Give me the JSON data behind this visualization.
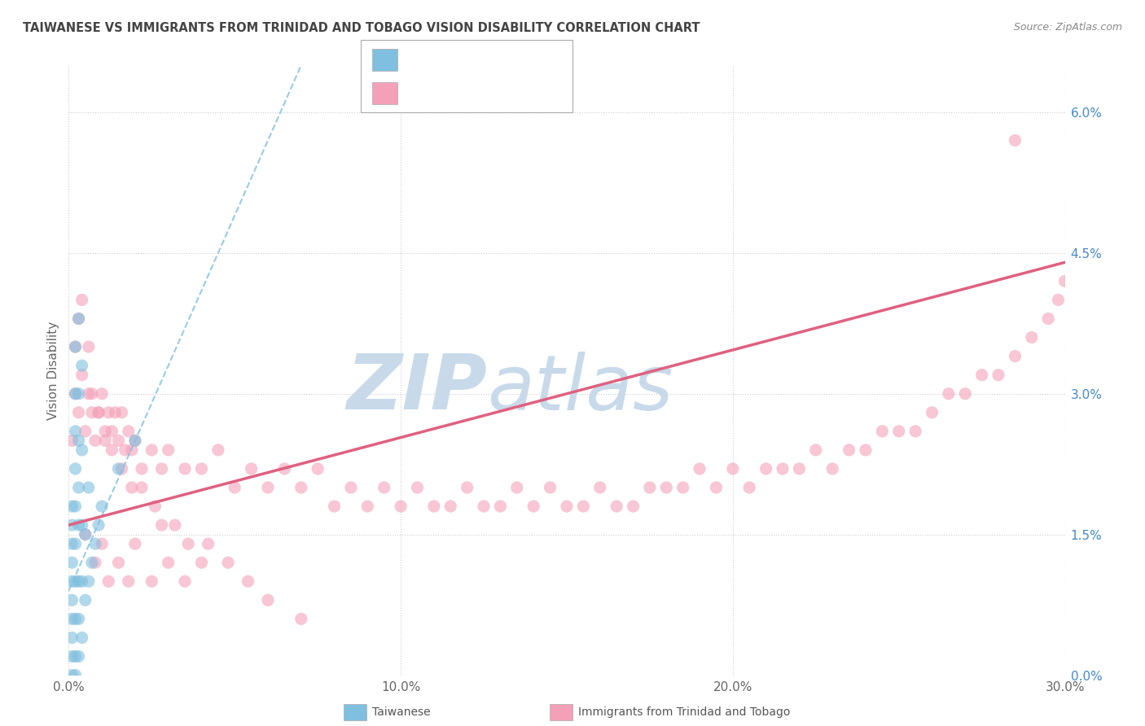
{
  "title": "TAIWANESE VS IMMIGRANTS FROM TRINIDAD AND TOBAGO VISION DISABILITY CORRELATION CHART",
  "source": "Source: ZipAtlas.com",
  "ylabel": "Vision Disability",
  "xlim": [
    0.0,
    0.3
  ],
  "ylim": [
    0.0,
    0.065
  ],
  "xticks": [
    0.0,
    0.1,
    0.2,
    0.3
  ],
  "xticklabels": [
    "0.0%",
    "10.0%",
    "20.0%",
    "30.0%"
  ],
  "yticks_right": [
    0.0,
    0.015,
    0.03,
    0.045,
    0.06
  ],
  "yticklabels_right": [
    "0.0%",
    "1.5%",
    "3.0%",
    "4.5%",
    "6.0%"
  ],
  "legend_labels_bottom": [
    "Taiwanese",
    "Immigrants from Trinidad and Tobago"
  ],
  "blue_color": "#7fbfdf",
  "pink_color": "#f4a0b8",
  "blue_line_color": "#7fbfdf",
  "pink_line_color": "#e06080",
  "watermark_zip": "ZIP",
  "watermark_atlas": "atlas",
  "watermark_color": "#c8daea",
  "title_color": "#444444",
  "source_color": "#888888",
  "legend_text_color": "#4488cc",
  "background_color": "#ffffff",
  "grid_color": "#cccccc",
  "blue_tw_x": [
    0.001,
    0.001,
    0.001,
    0.001,
    0.001,
    0.001,
    0.001,
    0.001,
    0.001,
    0.001,
    0.002,
    0.002,
    0.002,
    0.002,
    0.002,
    0.002,
    0.002,
    0.002,
    0.002,
    0.002,
    0.003,
    0.003,
    0.003,
    0.003,
    0.003,
    0.003,
    0.003,
    0.003,
    0.004,
    0.004,
    0.004,
    0.004,
    0.004,
    0.005,
    0.005,
    0.006,
    0.006,
    0.007,
    0.008,
    0.009,
    0.01,
    0.015,
    0.02
  ],
  "blue_tw_y": [
    0.0,
    0.002,
    0.004,
    0.006,
    0.008,
    0.01,
    0.012,
    0.014,
    0.016,
    0.018,
    0.0,
    0.002,
    0.006,
    0.01,
    0.014,
    0.018,
    0.022,
    0.026,
    0.03,
    0.035,
    0.002,
    0.006,
    0.01,
    0.016,
    0.02,
    0.025,
    0.03,
    0.038,
    0.004,
    0.01,
    0.016,
    0.024,
    0.033,
    0.008,
    0.015,
    0.01,
    0.02,
    0.012,
    0.014,
    0.016,
    0.018,
    0.022,
    0.025
  ],
  "pink_tr_x": [
    0.001,
    0.002,
    0.003,
    0.004,
    0.005,
    0.006,
    0.007,
    0.008,
    0.009,
    0.01,
    0.011,
    0.012,
    0.013,
    0.014,
    0.015,
    0.016,
    0.017,
    0.018,
    0.019,
    0.02,
    0.022,
    0.025,
    0.028,
    0.03,
    0.035,
    0.04,
    0.045,
    0.05,
    0.055,
    0.06,
    0.065,
    0.07,
    0.075,
    0.08,
    0.085,
    0.09,
    0.095,
    0.1,
    0.105,
    0.11,
    0.115,
    0.12,
    0.125,
    0.13,
    0.135,
    0.14,
    0.145,
    0.15,
    0.155,
    0.16,
    0.165,
    0.17,
    0.175,
    0.18,
    0.185,
    0.19,
    0.195,
    0.2,
    0.205,
    0.21,
    0.215,
    0.22,
    0.225,
    0.23,
    0.235,
    0.24,
    0.245,
    0.25,
    0.255,
    0.26,
    0.265,
    0.27,
    0.275,
    0.28,
    0.285,
    0.29,
    0.295,
    0.298,
    0.3,
    0.005,
    0.008,
    0.01,
    0.012,
    0.015,
    0.018,
    0.02,
    0.025,
    0.03,
    0.035,
    0.04,
    0.002,
    0.003,
    0.004,
    0.006,
    0.007,
    0.009,
    0.011,
    0.013,
    0.016,
    0.019,
    0.022,
    0.026,
    0.028,
    0.032,
    0.036,
    0.042,
    0.048,
    0.054,
    0.06,
    0.07
  ],
  "pink_tr_y": [
    0.025,
    0.03,
    0.028,
    0.032,
    0.026,
    0.03,
    0.028,
    0.025,
    0.028,
    0.03,
    0.025,
    0.028,
    0.026,
    0.028,
    0.025,
    0.028,
    0.024,
    0.026,
    0.024,
    0.025,
    0.022,
    0.024,
    0.022,
    0.024,
    0.022,
    0.022,
    0.024,
    0.02,
    0.022,
    0.02,
    0.022,
    0.02,
    0.022,
    0.018,
    0.02,
    0.018,
    0.02,
    0.018,
    0.02,
    0.018,
    0.018,
    0.02,
    0.018,
    0.018,
    0.02,
    0.018,
    0.02,
    0.018,
    0.018,
    0.02,
    0.018,
    0.018,
    0.02,
    0.02,
    0.02,
    0.022,
    0.02,
    0.022,
    0.02,
    0.022,
    0.022,
    0.022,
    0.024,
    0.022,
    0.024,
    0.024,
    0.026,
    0.026,
    0.026,
    0.028,
    0.03,
    0.03,
    0.032,
    0.032,
    0.034,
    0.036,
    0.038,
    0.04,
    0.042,
    0.015,
    0.012,
    0.014,
    0.01,
    0.012,
    0.01,
    0.014,
    0.01,
    0.012,
    0.01,
    0.012,
    0.035,
    0.038,
    0.04,
    0.035,
    0.03,
    0.028,
    0.026,
    0.024,
    0.022,
    0.02,
    0.02,
    0.018,
    0.016,
    0.016,
    0.014,
    0.014,
    0.012,
    0.01,
    0.008,
    0.006
  ],
  "pink_outlier_x": [
    0.285
  ],
  "pink_outlier_y": [
    0.057
  ],
  "blue_line_x0": 0.0,
  "blue_line_y0": 0.009,
  "blue_line_x1": 0.02,
  "blue_line_y1": 0.025,
  "pink_line_x0": 0.0,
  "pink_line_y0": 0.016,
  "pink_line_x1": 0.3,
  "pink_line_y1": 0.044
}
